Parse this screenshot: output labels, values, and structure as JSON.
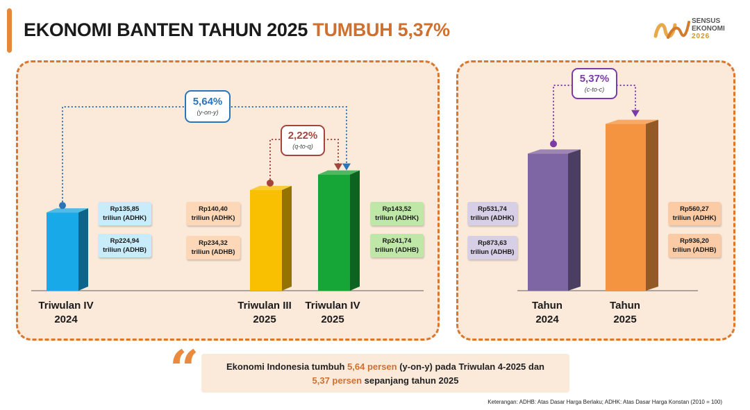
{
  "header": {
    "title_main": "EKONOMI BANTEN TAHUN 2025",
    "title_highlight": "TUMBUH 5,37%",
    "logo_line1": "SENSUS",
    "logo_line2": "EKONOMI",
    "logo_line3": "2026"
  },
  "chart_data": [
    {
      "type": "bar",
      "unit": "Rp triliun",
      "categories": [
        "Triwulan IV 2024",
        "Triwulan III 2025",
        "Triwulan IV 2025"
      ],
      "series": [
        {
          "name": "ADHK",
          "values": [
            135.85,
            140.4,
            143.52
          ]
        },
        {
          "name": "ADHB",
          "values": [
            224.94,
            234.32,
            241.74
          ]
        }
      ],
      "growth": [
        {
          "value": "5,64%",
          "label": "(y-on-y)",
          "from": "Triwulan IV 2024",
          "to": "Triwulan IV 2025"
        },
        {
          "value": "2,22%",
          "label": "(q-to-q)",
          "from": "Triwulan III 2025",
          "to": "Triwulan IV 2025"
        }
      ],
      "colors": [
        "#18a9e8",
        "#f8c000",
        "#16a637"
      ]
    },
    {
      "type": "bar",
      "unit": "Rp triliun",
      "categories": [
        "Tahun 2024",
        "Tahun 2025"
      ],
      "series": [
        {
          "name": "ADHK",
          "values": [
            531.74,
            560.27
          ]
        },
        {
          "name": "ADHB",
          "values": [
            873.63,
            936.2
          ]
        }
      ],
      "growth": [
        {
          "value": "5,37%",
          "label": "(c-to-c)",
          "from": "Tahun 2024",
          "to": "Tahun 2025"
        }
      ],
      "colors": [
        "#7e65a4",
        "#f59440"
      ]
    }
  ],
  "left_chart": {
    "bars": [
      {
        "x1": "Triwulan IV",
        "x2": "2024",
        "adhk_value": "Rp135,85",
        "adhk_unit": "triliun (ADHK)",
        "adhb_value": "Rp224,94",
        "adhb_unit": "triliun (ADHB)"
      },
      {
        "x1": "Triwulan III",
        "x2": "2025",
        "adhk_value": "Rp140,40",
        "adhk_unit": "triliun (ADHK)",
        "adhb_value": "Rp234,32",
        "adhb_unit": "triliun (ADHB)"
      },
      {
        "x1": "Triwulan IV",
        "x2": "2025",
        "adhk_value": "Rp143,52",
        "adhk_unit": "triliun (ADHK)",
        "adhb_value": "Rp241,74",
        "adhb_unit": "triliun (ADHB)"
      }
    ],
    "yoy_value": "5,64%",
    "yoy_label": "(y-on-y)",
    "qtq_value": "2,22%",
    "qtq_label": "(q-to-q)"
  },
  "right_chart": {
    "bars": [
      {
        "x1": "Tahun",
        "x2": "2024",
        "adhk_value": "Rp531,74",
        "adhk_unit": "triliun (ADHK)",
        "adhb_value": "Rp873,63",
        "adhb_unit": "triliun (ADHB)"
      },
      {
        "x1": "Tahun",
        "x2": "2025",
        "adhk_value": "Rp560,27",
        "adhk_unit": "triliun (ADHK)",
        "adhb_value": "Rp936,20",
        "adhb_unit": "triliun (ADHB)"
      }
    ],
    "ctc_value": "5,37%",
    "ctc_label": "(c-to-c)"
  },
  "summary": {
    "part1": "Ekonomi Indonesia tumbuh ",
    "hl1": "5,64 persen",
    "part2": " (y-on-y)  pada Triwulan 4-2025 dan",
    "hl2": "5,37 persen",
    "part3": " sepanjang tahun 2025"
  },
  "footnote": "Keterangan: ADHB: Atas Dasar Harga Berlaku; ADHK: Atas Dasar Harga Konstan (2010 = 100)"
}
